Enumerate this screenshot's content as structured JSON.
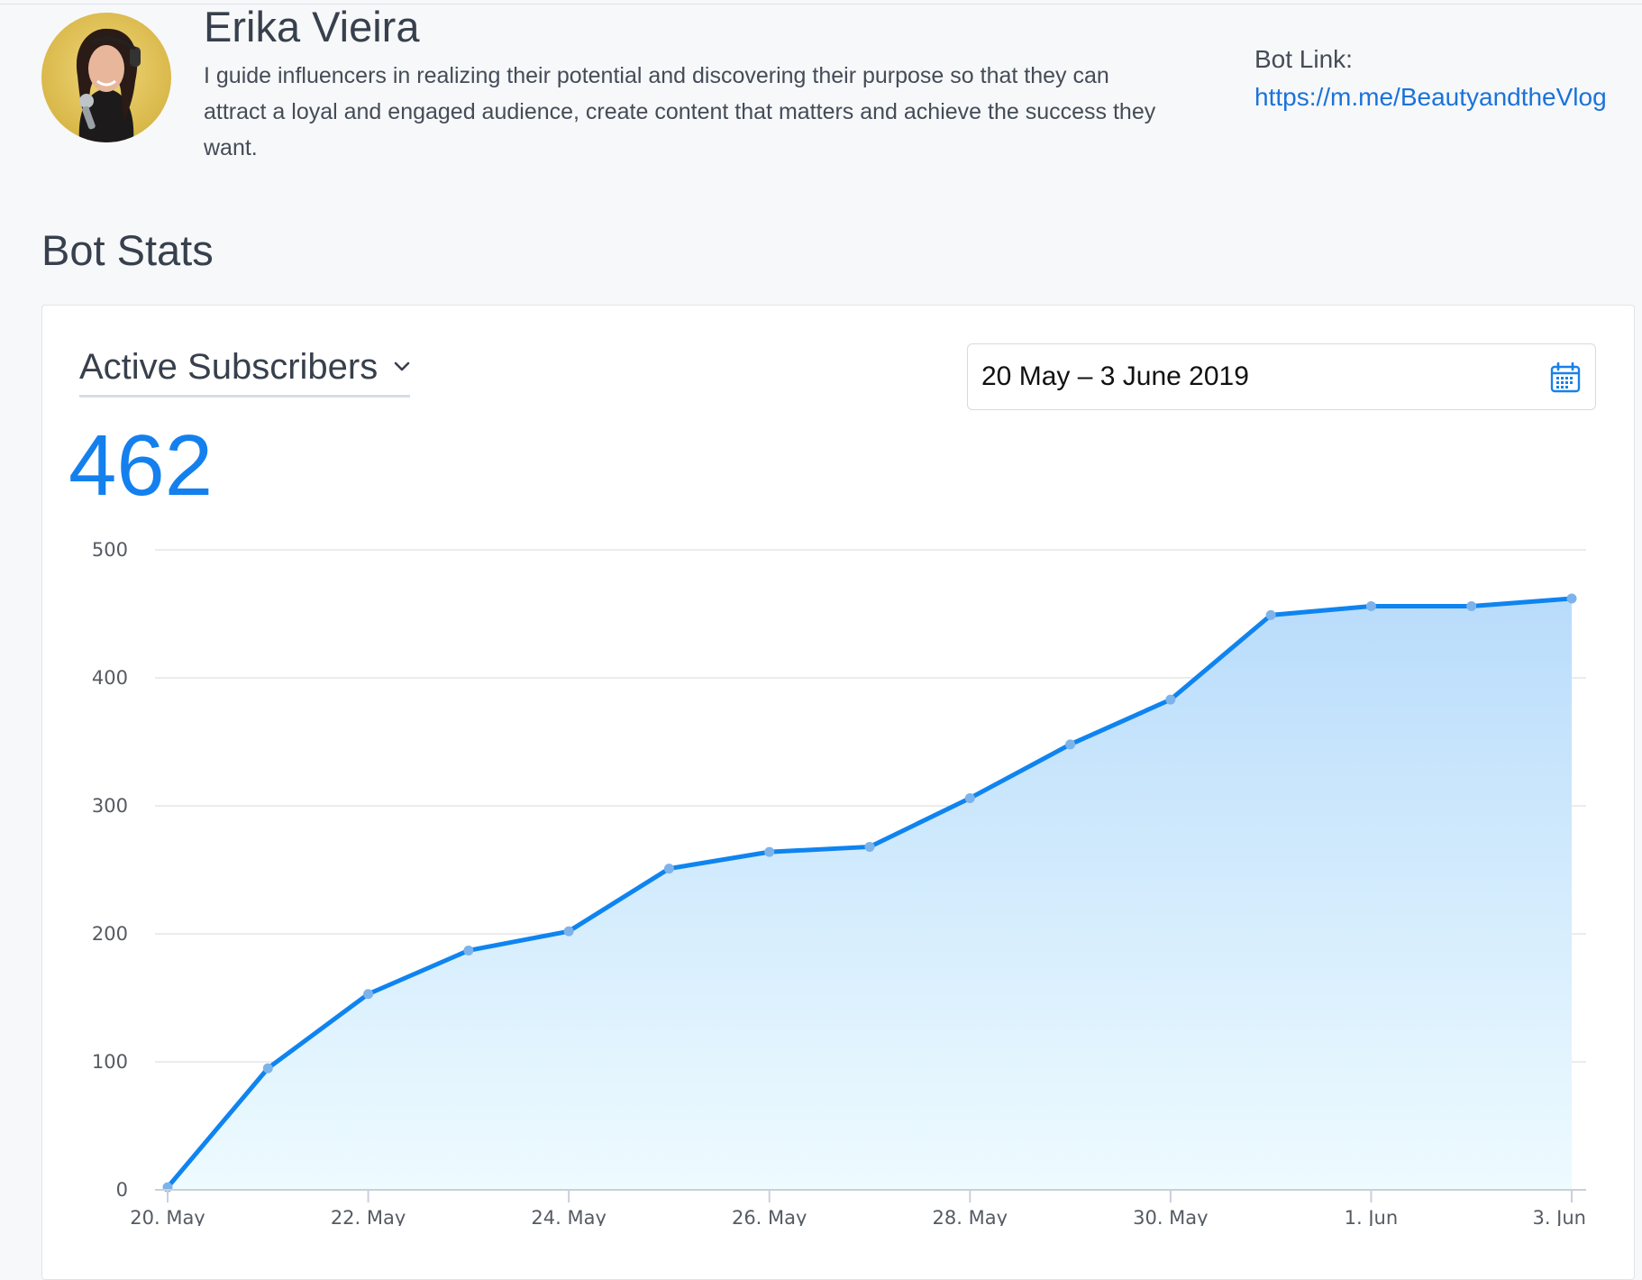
{
  "profile": {
    "name": "Erika Vieira",
    "bio": "I guide influencers in realizing their potential and discovering their purpose so that they can attract a loyal and engaged audience, create content that matters and achieve the success they want.",
    "bot_link_label": "Bot Link:",
    "bot_link_url": "https://m.me/BeautyandtheVlog"
  },
  "section_title": "Bot Stats",
  "stats": {
    "metric_selected": "Active Subscribers",
    "metric_value": "462",
    "date_range": "20 May – 3 June 2019",
    "icons": {
      "dropdown": "chevron-down-icon",
      "calendar": "calendar-icon"
    }
  },
  "colors": {
    "accent": "#1480ee",
    "line": "#0f84f0",
    "fill_top": "#b9dcfb",
    "fill_bottom": "#eefbff",
    "point": "#7cb3ea",
    "link": "#1a73d9"
  },
  "chart_data": {
    "type": "area",
    "x": [
      "20. May",
      "21. May",
      "22. May",
      "23. May",
      "24. May",
      "25. May",
      "26. May",
      "27. May",
      "28. May",
      "29. May",
      "30. May",
      "31. May",
      "1. Jun",
      "2. Jun",
      "3. Jun"
    ],
    "x_tick_labels": [
      "20. May",
      "22. May",
      "24. May",
      "26. May",
      "28. May",
      "30. May",
      "1. Jun",
      "3. Jun"
    ],
    "series": [
      {
        "values": [
          2,
          95,
          153,
          187,
          202,
          251,
          264,
          268,
          306,
          348,
          383,
          449,
          456,
          456,
          462
        ]
      }
    ],
    "y_ticks": [
      "0",
      "100",
      "200",
      "300",
      "400",
      "500"
    ],
    "ylim": [
      0,
      500
    ],
    "grid": true,
    "legend": "none"
  }
}
